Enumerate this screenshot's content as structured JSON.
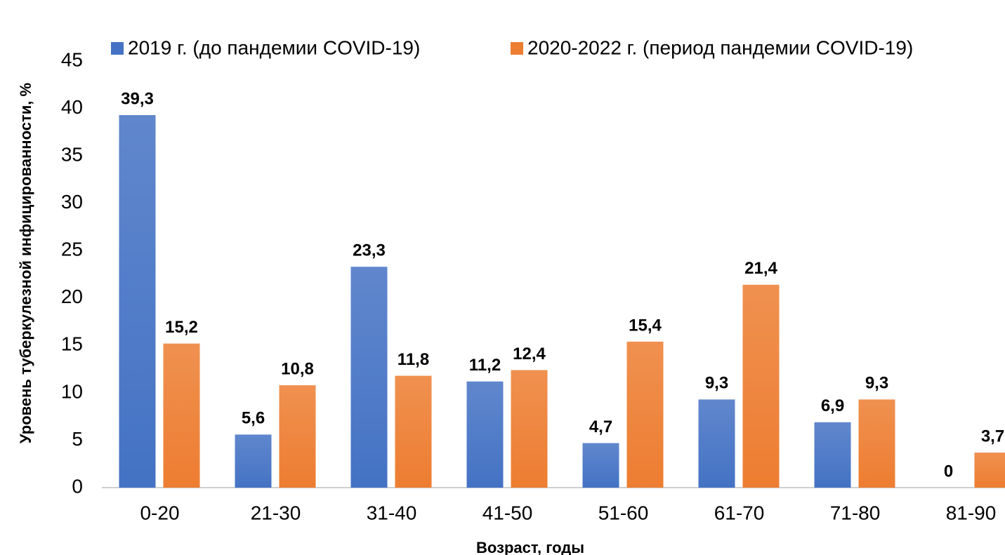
{
  "chart_data": {
    "type": "bar",
    "categories": [
      "0-20",
      "21-30",
      "31-40",
      "41-50",
      "51-60",
      "61-70",
      "71-80",
      "81-90"
    ],
    "series": [
      {
        "name": "2019 г. (до пандемии COVID-19)",
        "color": "#4472c4",
        "values": [
          39.3,
          5.6,
          23.3,
          11.2,
          4.7,
          9.3,
          6.9,
          0
        ],
        "value_labels": [
          "39,3",
          "5,6",
          "23,3",
          "11,2",
          "4,7",
          "9,3",
          "6,9",
          "0"
        ]
      },
      {
        "name": "2020-2022 г. (период пандемии COVID-19)",
        "color": "#ed7d31",
        "values": [
          15.2,
          10.8,
          11.8,
          12.4,
          15.4,
          21.4,
          9.3,
          3.7
        ],
        "value_labels": [
          "15,2",
          "10,8",
          "11,8",
          "12,4",
          "15,4",
          "21,4",
          "9,3",
          "3,7"
        ]
      }
    ],
    "ylim": [
      0,
      45
    ],
    "yticks": [
      0,
      5,
      10,
      15,
      20,
      25,
      30,
      35,
      40,
      45
    ],
    "ylabel": "Уровень туберкулезной инфицированности, %",
    "xlabel": "Возраст, годы",
    "legend": "top",
    "grid": false
  }
}
